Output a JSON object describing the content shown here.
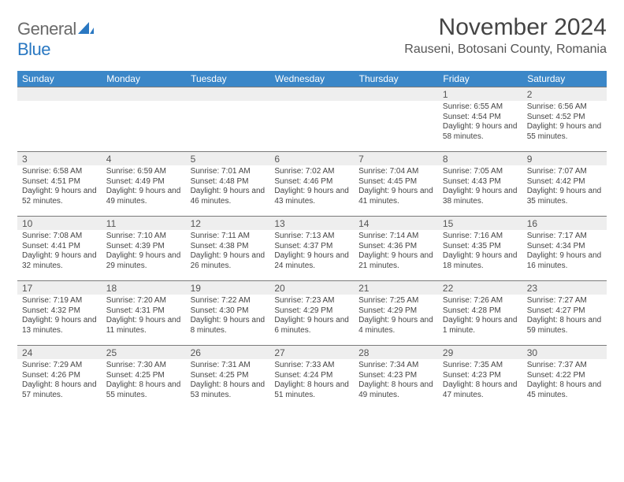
{
  "logo": {
    "part1": "General",
    "part2": "Blue"
  },
  "month_title": "November 2024",
  "location": "Rauseni, Botosani County, Romania",
  "colors": {
    "header_bg": "#3b87c8",
    "header_fg": "#ffffff",
    "daybar_bg": "#eeeeee",
    "daybar_border": "#7a7a7a",
    "logo_gray": "#6a6a6a",
    "logo_blue": "#2a78c2"
  },
  "weekdays": [
    "Sunday",
    "Monday",
    "Tuesday",
    "Wednesday",
    "Thursday",
    "Friday",
    "Saturday"
  ],
  "weeks": [
    [
      null,
      null,
      null,
      null,
      null,
      {
        "n": "1",
        "sr": "6:55 AM",
        "ss": "4:54 PM",
        "dl": "9 hours and 58 minutes."
      },
      {
        "n": "2",
        "sr": "6:56 AM",
        "ss": "4:52 PM",
        "dl": "9 hours and 55 minutes."
      }
    ],
    [
      {
        "n": "3",
        "sr": "6:58 AM",
        "ss": "4:51 PM",
        "dl": "9 hours and 52 minutes."
      },
      {
        "n": "4",
        "sr": "6:59 AM",
        "ss": "4:49 PM",
        "dl": "9 hours and 49 minutes."
      },
      {
        "n": "5",
        "sr": "7:01 AM",
        "ss": "4:48 PM",
        "dl": "9 hours and 46 minutes."
      },
      {
        "n": "6",
        "sr": "7:02 AM",
        "ss": "4:46 PM",
        "dl": "9 hours and 43 minutes."
      },
      {
        "n": "7",
        "sr": "7:04 AM",
        "ss": "4:45 PM",
        "dl": "9 hours and 41 minutes."
      },
      {
        "n": "8",
        "sr": "7:05 AM",
        "ss": "4:43 PM",
        "dl": "9 hours and 38 minutes."
      },
      {
        "n": "9",
        "sr": "7:07 AM",
        "ss": "4:42 PM",
        "dl": "9 hours and 35 minutes."
      }
    ],
    [
      {
        "n": "10",
        "sr": "7:08 AM",
        "ss": "4:41 PM",
        "dl": "9 hours and 32 minutes."
      },
      {
        "n": "11",
        "sr": "7:10 AM",
        "ss": "4:39 PM",
        "dl": "9 hours and 29 minutes."
      },
      {
        "n": "12",
        "sr": "7:11 AM",
        "ss": "4:38 PM",
        "dl": "9 hours and 26 minutes."
      },
      {
        "n": "13",
        "sr": "7:13 AM",
        "ss": "4:37 PM",
        "dl": "9 hours and 24 minutes."
      },
      {
        "n": "14",
        "sr": "7:14 AM",
        "ss": "4:36 PM",
        "dl": "9 hours and 21 minutes."
      },
      {
        "n": "15",
        "sr": "7:16 AM",
        "ss": "4:35 PM",
        "dl": "9 hours and 18 minutes."
      },
      {
        "n": "16",
        "sr": "7:17 AM",
        "ss": "4:34 PM",
        "dl": "9 hours and 16 minutes."
      }
    ],
    [
      {
        "n": "17",
        "sr": "7:19 AM",
        "ss": "4:32 PM",
        "dl": "9 hours and 13 minutes."
      },
      {
        "n": "18",
        "sr": "7:20 AM",
        "ss": "4:31 PM",
        "dl": "9 hours and 11 minutes."
      },
      {
        "n": "19",
        "sr": "7:22 AM",
        "ss": "4:30 PM",
        "dl": "9 hours and 8 minutes."
      },
      {
        "n": "20",
        "sr": "7:23 AM",
        "ss": "4:29 PM",
        "dl": "9 hours and 6 minutes."
      },
      {
        "n": "21",
        "sr": "7:25 AM",
        "ss": "4:29 PM",
        "dl": "9 hours and 4 minutes."
      },
      {
        "n": "22",
        "sr": "7:26 AM",
        "ss": "4:28 PM",
        "dl": "9 hours and 1 minute."
      },
      {
        "n": "23",
        "sr": "7:27 AM",
        "ss": "4:27 PM",
        "dl": "8 hours and 59 minutes."
      }
    ],
    [
      {
        "n": "24",
        "sr": "7:29 AM",
        "ss": "4:26 PM",
        "dl": "8 hours and 57 minutes."
      },
      {
        "n": "25",
        "sr": "7:30 AM",
        "ss": "4:25 PM",
        "dl": "8 hours and 55 minutes."
      },
      {
        "n": "26",
        "sr": "7:31 AM",
        "ss": "4:25 PM",
        "dl": "8 hours and 53 minutes."
      },
      {
        "n": "27",
        "sr": "7:33 AM",
        "ss": "4:24 PM",
        "dl": "8 hours and 51 minutes."
      },
      {
        "n": "28",
        "sr": "7:34 AM",
        "ss": "4:23 PM",
        "dl": "8 hours and 49 minutes."
      },
      {
        "n": "29",
        "sr": "7:35 AM",
        "ss": "4:23 PM",
        "dl": "8 hours and 47 minutes."
      },
      {
        "n": "30",
        "sr": "7:37 AM",
        "ss": "4:22 PM",
        "dl": "8 hours and 45 minutes."
      }
    ]
  ],
  "labels": {
    "sunrise": "Sunrise:",
    "sunset": "Sunset:",
    "daylight": "Daylight:"
  }
}
